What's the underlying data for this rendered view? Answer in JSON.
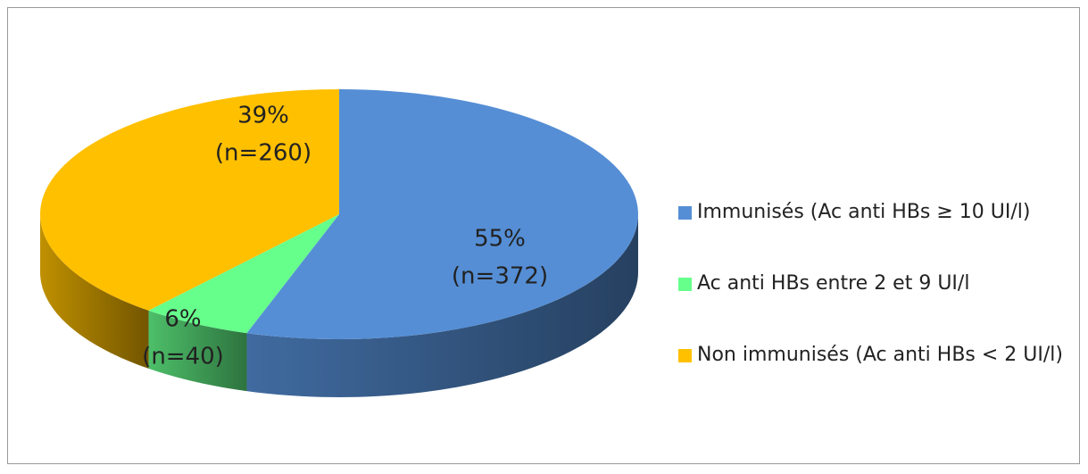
{
  "chart_data": {
    "type": "pie",
    "categories": [
      "Immunisés (Ac anti HBs ≥ 10 UI/l)",
      "Ac anti HBs entre 2 et 9 UI/l",
      "Non immunisés (Ac anti HBs < 2 UI/l)"
    ],
    "values": [
      55,
      6,
      39
    ],
    "value_labels": [
      "55%",
      "6%",
      "39%"
    ],
    "count_labels": [
      "(n=372)",
      "(n=40)",
      "(n=260)"
    ],
    "colors": [
      "#558ed5",
      "#66ff8c",
      "#ffc000"
    ],
    "legend": "right"
  }
}
